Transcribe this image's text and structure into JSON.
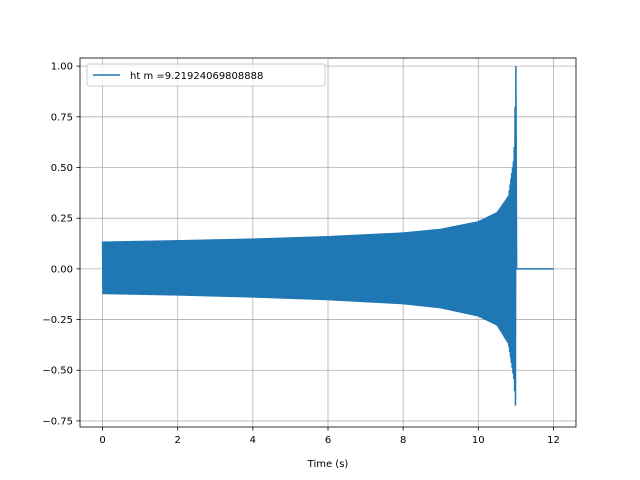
{
  "chart_data": {
    "type": "line",
    "title": "",
    "xlabel": "Time (s)",
    "ylabel": "",
    "xlim": [
      -0.6,
      12.6
    ],
    "ylim": [
      -0.78,
      1.04
    ],
    "grid": true,
    "legend_position": "top-left",
    "xticks": [
      0,
      2,
      4,
      6,
      8,
      10,
      12
    ],
    "yticks": [
      -0.75,
      -0.5,
      -0.25,
      0.0,
      0.25,
      0.5,
      0.75,
      1.0
    ],
    "xtick_labels": [
      "0",
      "2",
      "4",
      "6",
      "8",
      "10",
      "12"
    ],
    "ytick_labels": [
      "−0.75",
      "−0.50",
      "−0.25",
      "0.00",
      "0.25",
      "0.50",
      "0.75",
      "1.00"
    ],
    "series": [
      {
        "name": "ht m =9.21924069808888",
        "color": "#1f77b4",
        "merger_time": 11.0,
        "end_time": 12.0,
        "upper_envelope": [
          {
            "x": 0.0,
            "y": 0.135
          },
          {
            "x": 2.0,
            "y": 0.142
          },
          {
            "x": 4.0,
            "y": 0.15
          },
          {
            "x": 6.0,
            "y": 0.162
          },
          {
            "x": 8.0,
            "y": 0.18
          },
          {
            "x": 9.0,
            "y": 0.198
          },
          {
            "x": 10.0,
            "y": 0.235
          },
          {
            "x": 10.5,
            "y": 0.28
          },
          {
            "x": 10.8,
            "y": 0.36
          },
          {
            "x": 10.95,
            "y": 0.55
          },
          {
            "x": 11.0,
            "y": 1.0
          }
        ],
        "lower_envelope": [
          {
            "x": 0.0,
            "y": -0.125
          },
          {
            "x": 2.0,
            "y": -0.132
          },
          {
            "x": 4.0,
            "y": -0.142
          },
          {
            "x": 6.0,
            "y": -0.155
          },
          {
            "x": 8.0,
            "y": -0.175
          },
          {
            "x": 9.0,
            "y": -0.195
          },
          {
            "x": 10.0,
            "y": -0.235
          },
          {
            "x": 10.5,
            "y": -0.28
          },
          {
            "x": 10.8,
            "y": -0.37
          },
          {
            "x": 10.95,
            "y": -0.55
          },
          {
            "x": 11.0,
            "y": -0.71
          }
        ]
      }
    ]
  }
}
